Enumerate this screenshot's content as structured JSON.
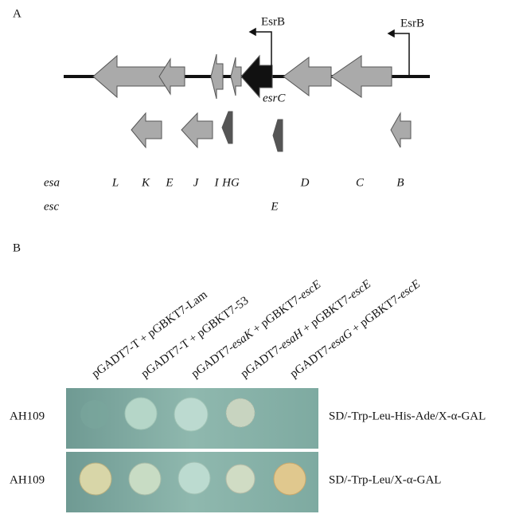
{
  "panel_a": {
    "label": "A",
    "promoters": [
      "EsrB",
      "EsrB"
    ],
    "gene_label": "esrC",
    "rows": [
      {
        "name": "esa",
        "genes": [
          "L",
          "K",
          "E",
          "J",
          "I",
          "HG",
          "D",
          "C",
          "B"
        ]
      },
      {
        "name": "esc",
        "genes": [
          "E"
        ]
      }
    ]
  },
  "panel_b": {
    "label": "B",
    "columns": [
      [
        {
          "text": "pGADT7-T + pGBKT7-Lam"
        }
      ],
      [
        {
          "text": "pGADT7-T + pGBKT7-53"
        }
      ],
      [
        {
          "text": "pGADT7-"
        },
        {
          "text": "esaK",
          "italic": true
        },
        {
          "text": " + pGBKT7-"
        },
        {
          "text": "escE",
          "italic": true
        }
      ],
      [
        {
          "text": "pGADT7-"
        },
        {
          "text": "esaH",
          "italic": true
        },
        {
          "text": " + pGBKT7-"
        },
        {
          "text": "escE",
          "italic": true
        }
      ],
      [
        {
          "text": "pGADT7-"
        },
        {
          "text": "esaG",
          "italic": true
        },
        {
          "text": " + pGBKT7-"
        },
        {
          "text": "escE",
          "italic": true
        }
      ]
    ],
    "rows": [
      {
        "strain": "AH109",
        "medium": "SD/-Trp-Leu-His-Ade/X-α-GAL"
      },
      {
        "strain": "AH109",
        "medium": "SD/-Trp-Leu/X-α-GAL"
      }
    ]
  }
}
